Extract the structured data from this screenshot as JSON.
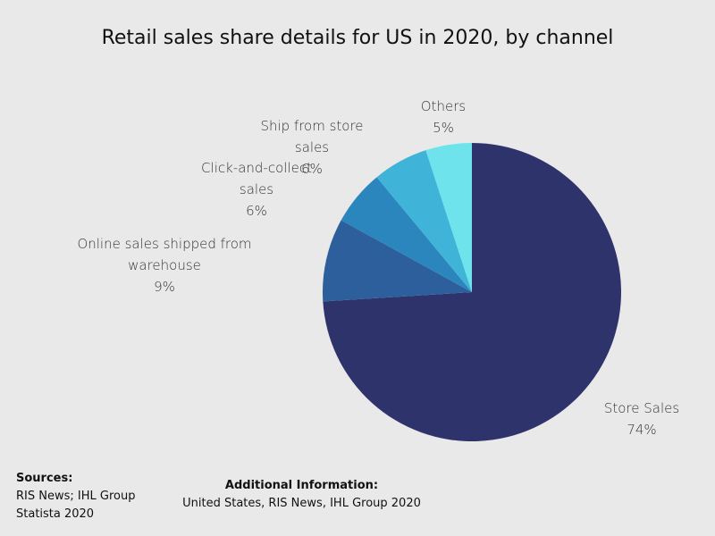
{
  "chart_data": {
    "type": "pie",
    "title": "Retail sales share details for US in 2020, by channel",
    "slices": [
      {
        "label": "Store Sales",
        "value": 74,
        "value_label": "74%",
        "color": "#2f336b"
      },
      {
        "label": "Online sales shipped from warehouse",
        "value": 9,
        "value_label": "9%",
        "color": "#2c5f9c"
      },
      {
        "label": "Click-and-collect sales",
        "value": 6,
        "value_label": "6%",
        "color": "#2b86bd"
      },
      {
        "label": "Ship from store sales",
        "value": 6,
        "value_label": "6%",
        "color": "#40b3d9"
      },
      {
        "label": "Others",
        "value": 5,
        "value_label": "5%",
        "color": "#6ee3eb"
      }
    ],
    "legend": "none"
  },
  "footer": {
    "sources_heading": "Sources:",
    "sources_lines": [
      "RIS News; IHL Group",
      "Statista 2020"
    ],
    "additional_heading": "Additional Information:",
    "additional_text": "United States, RIS News, IHL Group 2020"
  }
}
